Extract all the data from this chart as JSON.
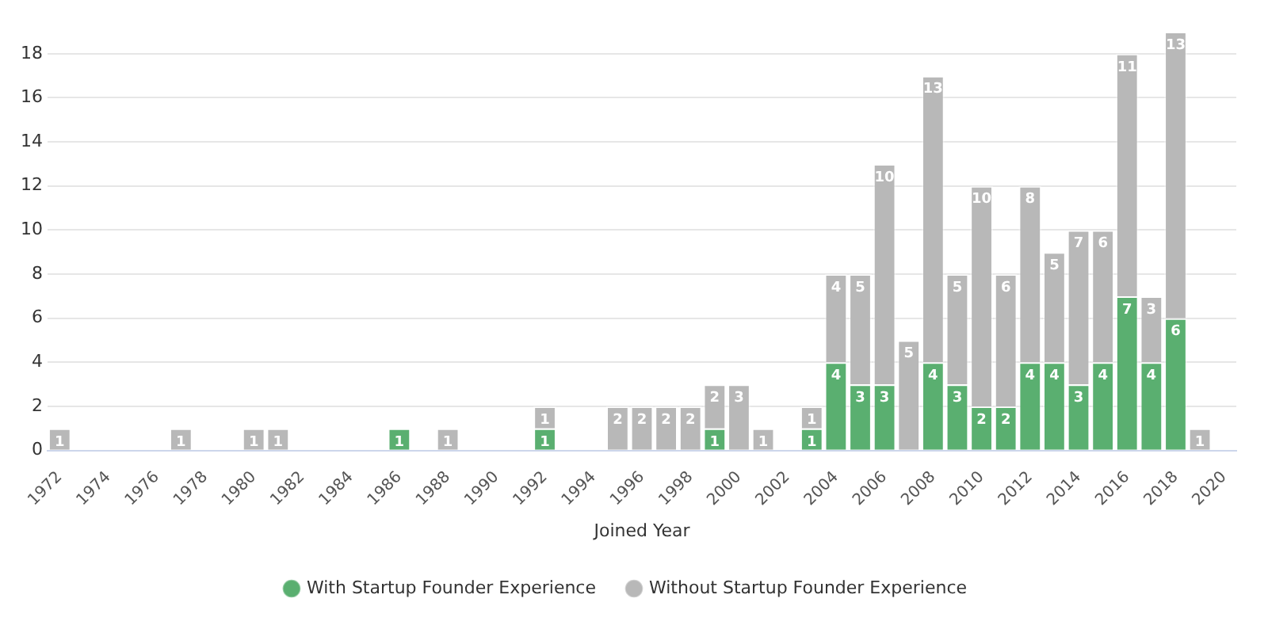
{
  "chart_data": {
    "type": "bar",
    "stacked": true,
    "xlabel": "Joined Year",
    "categories": [
      "1972",
      null,
      "1974",
      null,
      "1976",
      null,
      "1978",
      null,
      "1980",
      null,
      "1982",
      null,
      "1984",
      null,
      "1986",
      null,
      "1988",
      null,
      "1990",
      null,
      "1992",
      null,
      "1994",
      null,
      "1996",
      null,
      "1998",
      null,
      "2000",
      null,
      "2002",
      null,
      "2004",
      null,
      "2006",
      null,
      "2008",
      null,
      "2010",
      null,
      "2012",
      null,
      "2014",
      null,
      "2016",
      null,
      "2018",
      null,
      "2020"
    ],
    "series": [
      {
        "name": "With Startup Founder Experience",
        "color": "#5aaf70",
        "values": [
          null,
          null,
          null,
          null,
          null,
          null,
          null,
          null,
          null,
          null,
          null,
          null,
          null,
          null,
          1,
          null,
          null,
          null,
          null,
          null,
          1,
          null,
          null,
          null,
          null,
          null,
          null,
          1,
          null,
          null,
          null,
          1,
          4,
          3,
          3,
          null,
          4,
          3,
          2,
          2,
          4,
          4,
          3,
          4,
          7,
          4,
          6,
          null,
          null
        ]
      },
      {
        "name": "Without Startup Founder Experience",
        "color": "#b8b8b8",
        "values": [
          1,
          null,
          null,
          null,
          null,
          1,
          null,
          null,
          1,
          1,
          null,
          null,
          null,
          null,
          null,
          null,
          1,
          null,
          null,
          null,
          1,
          null,
          null,
          2,
          2,
          2,
          2,
          2,
          3,
          1,
          null,
          1,
          4,
          5,
          10,
          5,
          13,
          5,
          10,
          6,
          8,
          5,
          7,
          6,
          11,
          3,
          13,
          1,
          null
        ]
      }
    ],
    "ylim": [
      0,
      19
    ],
    "yticks": [
      0,
      2,
      4,
      6,
      8,
      10,
      12,
      14,
      16,
      18
    ],
    "grid": "y",
    "legend": "bottom",
    "marker": "circle",
    "data_labels": true
  }
}
